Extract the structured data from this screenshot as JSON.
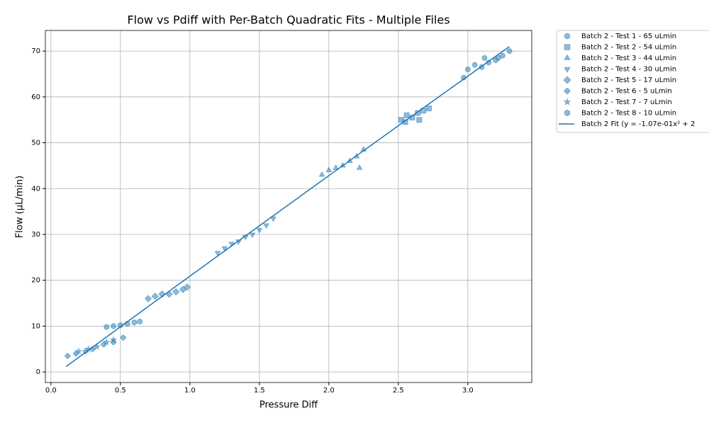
{
  "chart_data": {
    "type": "scatter",
    "title": "Flow vs Pdiff with Per-Batch Quadratic Fits - Multiple Files",
    "x_label": "Pressure Diff",
    "y_label": "Flow (µL/min)",
    "xlim": [
      -0.04,
      3.46
    ],
    "ylim": [
      -2.3,
      74.5
    ],
    "xticks": [
      {
        "value": 0,
        "label": "0.0"
      },
      {
        "value": 0.5,
        "label": "0.5"
      },
      {
        "value": 1,
        "label": "1.0"
      },
      {
        "value": 1.5,
        "label": "1.5"
      },
      {
        "value": 2,
        "label": "2.0"
      },
      {
        "value": 2.5,
        "label": "2.5"
      },
      {
        "value": 3,
        "label": "3.0"
      }
    ],
    "yticks": [
      0,
      10,
      20,
      30,
      40,
      50,
      60,
      70
    ],
    "grid": true,
    "legend": "outside-right",
    "series": [
      {
        "name": "Batch 2 - Test 1 - 65 uLmin",
        "color": "#1f77b4",
        "marker": "circle",
        "x": [
          3.0,
          3.05,
          3.1,
          3.15,
          3.2,
          3.25,
          3.3,
          2.97,
          3.12,
          3.22
        ],
        "values": [
          66,
          67,
          66.5,
          67.5,
          68,
          69,
          70,
          64.2,
          68.5,
          68.5
        ]
      },
      {
        "name": "Batch 2 - Test 2 - 54 uLmin",
        "color": "#1f77b4",
        "marker": "square",
        "x": [
          2.52,
          2.56,
          2.6,
          2.64,
          2.68,
          2.72,
          2.55,
          2.65
        ],
        "values": [
          55,
          56,
          55.5,
          56.5,
          57,
          57.5,
          54.5,
          55
        ]
      },
      {
        "name": "Batch 2 - Test 3 - 44 uLmin",
        "color": "#1f77b4",
        "marker": "triangle-up",
        "x": [
          1.95,
          2.0,
          2.05,
          2.1,
          2.15,
          2.2,
          2.25,
          2.22
        ],
        "values": [
          43,
          44,
          44.5,
          45,
          46,
          47,
          48.5,
          44.5
        ]
      },
      {
        "name": "Batch 2 - Test 4 - 30 uLmin",
        "color": "#1f77b4",
        "marker": "triangle-down",
        "x": [
          1.2,
          1.25,
          1.3,
          1.35,
          1.4,
          1.45,
          1.5,
          1.55,
          1.6
        ],
        "values": [
          26,
          27,
          28,
          28.5,
          29.5,
          30,
          31,
          32,
          33.5
        ]
      },
      {
        "name": "Batch 2 - Test 5 - 17 uLmin",
        "color": "#1f77b4",
        "marker": "diamond",
        "x": [
          0.7,
          0.75,
          0.8,
          0.85,
          0.9,
          0.95,
          0.98
        ],
        "values": [
          16,
          16.5,
          17,
          17,
          17.5,
          18,
          18.5
        ]
      },
      {
        "name": "Batch 2 - Test 6 - 5 uLmin",
        "color": "#1f77b4",
        "marker": "plus",
        "x": [
          0.12,
          0.18,
          0.25,
          0.3,
          0.38,
          0.45,
          0.52
        ],
        "values": [
          3.5,
          4,
          4.5,
          5,
          6,
          6.5,
          7.5
        ]
      },
      {
        "name": "Batch 2 - Test 7 - 7 uLmin",
        "color": "#1f77b4",
        "marker": "star",
        "x": [
          0.2,
          0.27,
          0.33,
          0.4,
          0.45
        ],
        "values": [
          4.5,
          5,
          5.5,
          6.5,
          7
        ]
      },
      {
        "name": "Batch 2 - Test 8 - 10 uLmin",
        "color": "#1f77b4",
        "marker": "hexagon",
        "x": [
          0.4,
          0.45,
          0.5,
          0.55,
          0.6,
          0.64
        ],
        "values": [
          9.8,
          10,
          10.2,
          10.5,
          10.8,
          11
        ]
      },
      {
        "name": "Batch 2 Fit (y = -1.07e-01x² + 2",
        "color": "#1f77b4",
        "marker": "line",
        "x": [
          0.11,
          0.5,
          1.0,
          1.5,
          2.0,
          2.5,
          3.0,
          3.3
        ],
        "values": [
          1.2,
          9.85,
          20.9,
          31.89,
          42.83,
          53.71,
          64.54,
          71.0
        ]
      }
    ]
  }
}
